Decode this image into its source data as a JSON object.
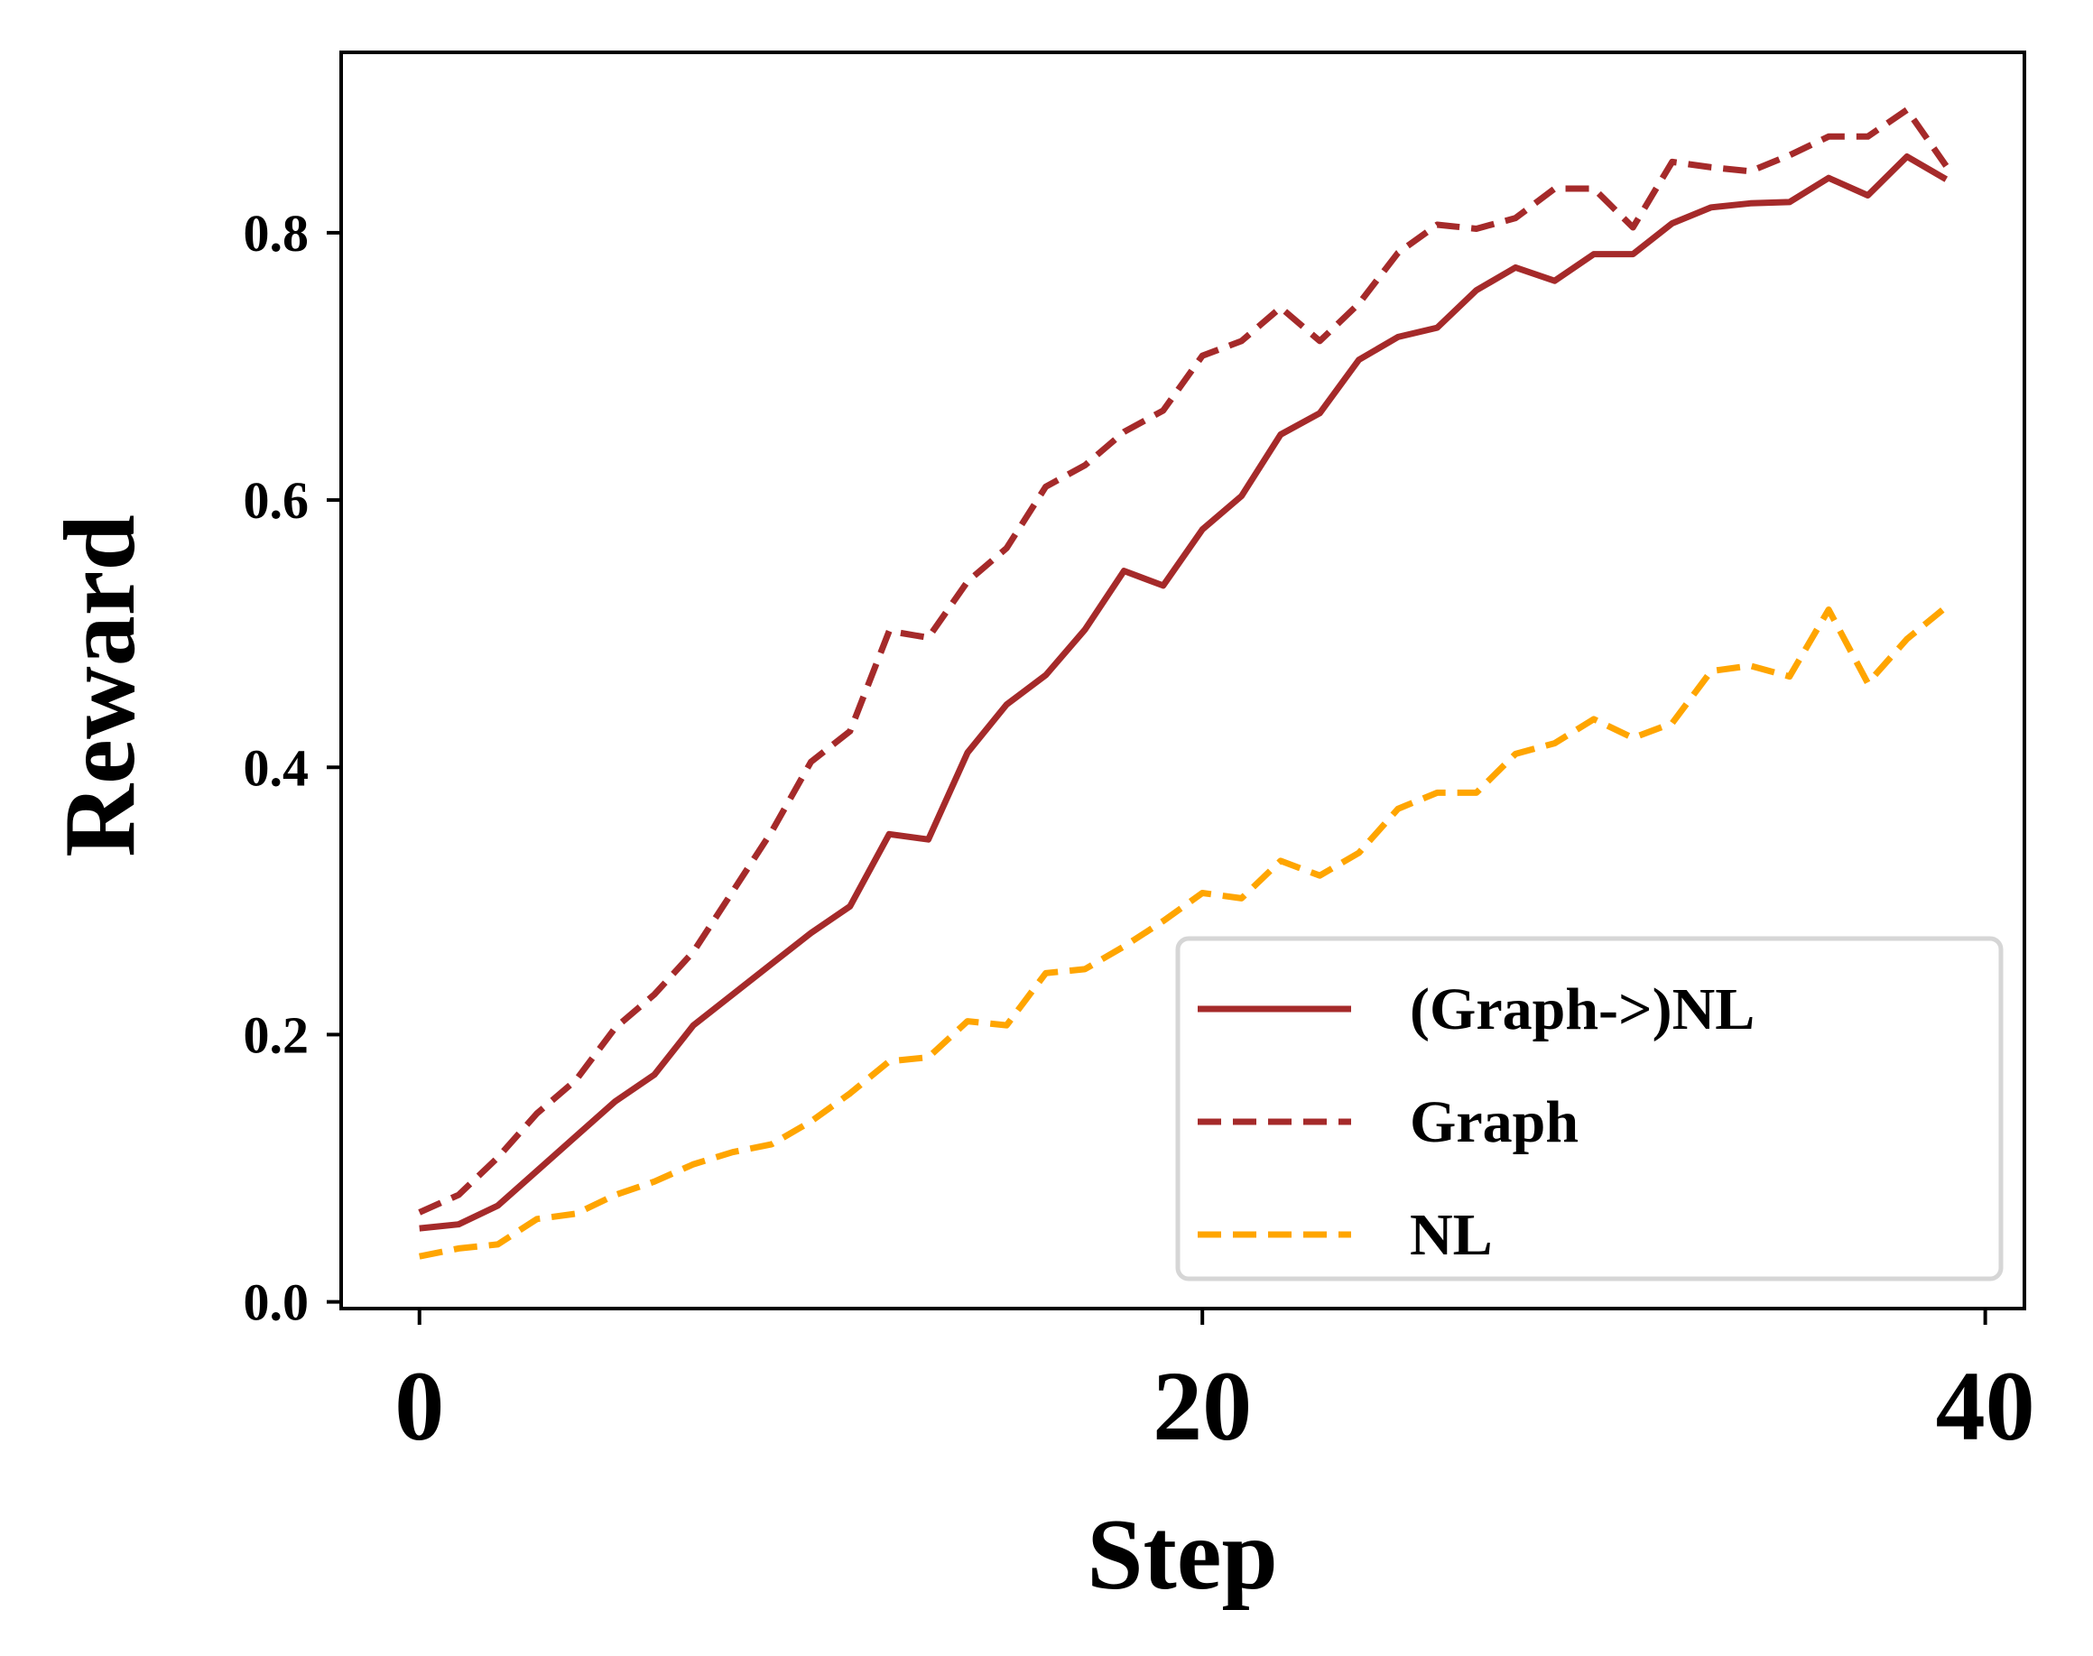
{
  "chart_data": {
    "type": "line",
    "title": "",
    "xlabel": "Step",
    "ylabel": "Reward",
    "xlim": [
      -2,
      41
    ],
    "ylim": [
      -0.005,
      0.935
    ],
    "x_ticks": [
      0,
      20,
      40
    ],
    "x_tick_labels": [
      "0",
      "20",
      "40"
    ],
    "y_ticks": [
      0.0,
      0.2,
      0.4,
      0.6,
      0.8
    ],
    "y_tick_labels": [
      "0.0",
      "0.2",
      "0.4",
      "0.6",
      "0.8"
    ],
    "grid": false,
    "legend_position": "lower-right",
    "x": [
      0,
      1,
      2,
      3,
      4,
      5,
      6,
      7,
      8,
      9,
      10,
      11,
      12,
      13,
      14,
      15,
      16,
      17,
      18,
      19,
      20,
      21,
      22,
      23,
      24,
      25,
      26,
      27,
      28,
      29,
      30,
      31,
      32,
      33,
      34,
      35,
      36,
      37,
      38,
      39
    ],
    "series": [
      {
        "name": "(Graph->)NL",
        "color": "#a52a2a",
        "style": "solid",
        "values": [
          0.055,
          0.058,
          0.072,
          0.098,
          0.124,
          0.15,
          0.17,
          0.207,
          0.23,
          0.253,
          0.276,
          0.296,
          0.35,
          0.346,
          0.411,
          0.447,
          0.469,
          0.503,
          0.547,
          0.536,
          0.578,
          0.603,
          0.649,
          0.665,
          0.705,
          0.722,
          0.729,
          0.757,
          0.774,
          0.764,
          0.784,
          0.784,
          0.807,
          0.819,
          0.822,
          0.823,
          0.841,
          0.828,
          0.857,
          0.84
        ]
      },
      {
        "name": "Graph",
        "color": "#a52a2a",
        "style": "dashed",
        "values": [
          0.067,
          0.08,
          0.108,
          0.141,
          0.166,
          0.205,
          0.23,
          0.262,
          0.307,
          0.352,
          0.404,
          0.427,
          0.502,
          0.497,
          0.539,
          0.564,
          0.61,
          0.626,
          0.651,
          0.667,
          0.708,
          0.719,
          0.744,
          0.719,
          0.747,
          0.785,
          0.806,
          0.803,
          0.811,
          0.833,
          0.833,
          0.804,
          0.853,
          0.849,
          0.846,
          0.858,
          0.872,
          0.872,
          0.892,
          0.85
        ]
      },
      {
        "name": "NL",
        "color": "#ffa500",
        "style": "dashed",
        "values": [
          0.034,
          0.04,
          0.043,
          0.062,
          0.066,
          0.08,
          0.09,
          0.103,
          0.112,
          0.118,
          0.135,
          0.156,
          0.18,
          0.183,
          0.21,
          0.207,
          0.246,
          0.249,
          0.266,
          0.285,
          0.306,
          0.302,
          0.33,
          0.319,
          0.336,
          0.369,
          0.381,
          0.381,
          0.41,
          0.418,
          0.436,
          0.422,
          0.433,
          0.472,
          0.476,
          0.468,
          0.518,
          0.463,
          0.496,
          0.52
        ]
      }
    ]
  }
}
